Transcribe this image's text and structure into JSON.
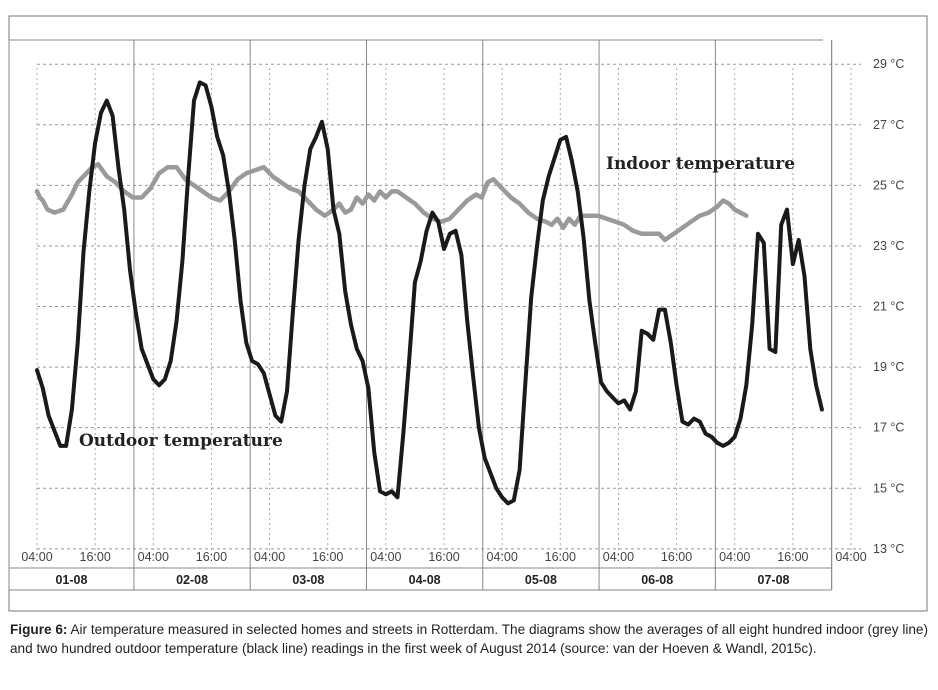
{
  "chart_data": {
    "type": "line",
    "x_unit": "day-time",
    "x_tick_labels": [
      "04:00",
      "16:00",
      "04:00",
      "16:00",
      "04:00",
      "16:00",
      "04:00",
      "16:00",
      "04:00",
      "16:00",
      "04:00",
      "16:00",
      "04:00",
      "16:00",
      "04:00"
    ],
    "day_labels": [
      "01-08",
      "02-08",
      "03-08",
      "04-08",
      "05-08",
      "06-08",
      "07-08"
    ],
    "y_tick_labels": [
      "29 °C",
      "27 °C",
      "25 °C",
      "23 °C",
      "21 °C",
      "19 °C",
      "17 °C",
      "15 °C",
      "13 °C"
    ],
    "y_ticks": [
      29,
      27,
      25,
      23,
      21,
      19,
      17,
      15,
      13
    ],
    "ylim": [
      12.4,
      29.8
    ],
    "grid": true,
    "series": [
      {
        "name": "Indoor temperature",
        "color": "#9a9a9a",
        "points": [
          [
            0,
            24.8
          ],
          [
            0.5,
            24.6
          ],
          [
            1,
            24.5
          ],
          [
            1.8,
            24.2
          ],
          [
            3,
            24.1
          ],
          [
            4.5,
            24.2
          ],
          [
            6,
            24.7
          ],
          [
            7,
            25.1
          ],
          [
            8.5,
            25.4
          ],
          [
            9.5,
            25.6
          ],
          [
            10.5,
            25.7
          ],
          [
            12,
            25.3
          ],
          [
            13.5,
            25.1
          ],
          [
            15,
            24.8
          ],
          [
            16.5,
            24.6
          ],
          [
            18,
            24.6
          ],
          [
            19.5,
            24.9
          ],
          [
            21,
            25.4
          ],
          [
            22.5,
            25.6
          ],
          [
            24,
            25.6
          ],
          [
            25.5,
            25.2
          ],
          [
            27,
            25
          ],
          [
            28.5,
            24.8
          ],
          [
            30,
            24.6
          ],
          [
            31.5,
            24.5
          ],
          [
            33,
            24.8
          ],
          [
            34.5,
            25.2
          ],
          [
            36,
            25.4
          ],
          [
            37.5,
            25.5
          ],
          [
            39,
            25.6
          ],
          [
            40.5,
            25.3
          ],
          [
            42,
            25.1
          ],
          [
            43.5,
            24.9
          ],
          [
            45,
            24.8
          ],
          [
            46.5,
            24.5
          ],
          [
            48,
            24.2
          ],
          [
            49.5,
            24
          ],
          [
            51,
            24.2
          ],
          [
            52,
            24.4
          ],
          [
            53,
            24.1
          ],
          [
            54,
            24.2
          ],
          [
            55,
            24.6
          ],
          [
            56,
            24.4
          ],
          [
            57,
            24.7
          ],
          [
            58,
            24.5
          ],
          [
            59,
            24.8
          ],
          [
            60,
            24.6
          ],
          [
            61,
            24.8
          ],
          [
            62,
            24.8
          ],
          [
            63.5,
            24.6
          ],
          [
            65,
            24.4
          ],
          [
            66.5,
            24.1
          ],
          [
            68,
            23.9
          ],
          [
            69.5,
            23.8
          ],
          [
            71,
            23.9
          ],
          [
            72.5,
            24.2
          ],
          [
            74,
            24.5
          ],
          [
            75.5,
            24.7
          ],
          [
            76.5,
            24.6
          ],
          [
            77.5,
            25.1
          ],
          [
            78.5,
            25.2
          ],
          [
            80,
            24.9
          ],
          [
            81.5,
            24.6
          ],
          [
            83,
            24.4
          ],
          [
            84.5,
            24.1
          ],
          [
            86,
            23.9
          ],
          [
            87.5,
            23.8
          ],
          [
            88.5,
            23.7
          ],
          [
            89.5,
            23.9
          ],
          [
            90.5,
            23.6
          ],
          [
            91.5,
            23.9
          ],
          [
            92.5,
            23.7
          ],
          [
            93.5,
            24
          ],
          [
            95,
            24
          ],
          [
            96.5,
            24
          ],
          [
            98,
            23.9
          ],
          [
            99.5,
            23.8
          ],
          [
            101,
            23.7
          ],
          [
            102.5,
            23.5
          ],
          [
            104,
            23.4
          ],
          [
            105.5,
            23.4
          ],
          [
            107,
            23.4
          ],
          [
            108,
            23.2
          ],
          [
            109.5,
            23.4
          ],
          [
            111,
            23.6
          ],
          [
            112.5,
            23.8
          ],
          [
            114,
            24
          ],
          [
            115.5,
            24.1
          ],
          [
            117,
            24.3
          ],
          [
            118,
            24.5
          ],
          [
            119,
            24.4
          ],
          [
            120,
            24.2
          ],
          [
            121,
            24.1
          ],
          [
            122,
            24
          ]
        ]
      },
      {
        "name": "Outdoor temperature",
        "color": "#1a1a1a",
        "points": [
          [
            0,
            18.9
          ],
          [
            1,
            18.3
          ],
          [
            2,
            17.4
          ],
          [
            3,
            16.9
          ],
          [
            4,
            16.4
          ],
          [
            5,
            16.4
          ],
          [
            6,
            17.6
          ],
          [
            7,
            19.8
          ],
          [
            8,
            22.8
          ],
          [
            9,
            24.8
          ],
          [
            10,
            26.4
          ],
          [
            11,
            27.4
          ],
          [
            12,
            27.8
          ],
          [
            13,
            27.3
          ],
          [
            14,
            25.6
          ],
          [
            15,
            24.2
          ],
          [
            16,
            22.2
          ],
          [
            17,
            20.8
          ],
          [
            18,
            19.6
          ],
          [
            19,
            19.1
          ],
          [
            20,
            18.6
          ],
          [
            21,
            18.4
          ],
          [
            22,
            18.6
          ],
          [
            23,
            19.2
          ],
          [
            24,
            20.5
          ],
          [
            25,
            22.5
          ],
          [
            26,
            25.3
          ],
          [
            27,
            27.8
          ],
          [
            28,
            28.4
          ],
          [
            29,
            28.3
          ],
          [
            30,
            27.6
          ],
          [
            31,
            26.6
          ],
          [
            32,
            26
          ],
          [
            33,
            24.8
          ],
          [
            34,
            23.2
          ],
          [
            35,
            21.2
          ],
          [
            36,
            19.8
          ],
          [
            37,
            19.2
          ],
          [
            38,
            19.1
          ],
          [
            39,
            18.8
          ],
          [
            40,
            18.1
          ],
          [
            41,
            17.4
          ],
          [
            42,
            17.2
          ],
          [
            43,
            18.2
          ],
          [
            44,
            20.8
          ],
          [
            45,
            23.2
          ],
          [
            46,
            25
          ],
          [
            47,
            26.2
          ],
          [
            48,
            26.6
          ],
          [
            49,
            27.1
          ],
          [
            50,
            26.2
          ],
          [
            51,
            24.2
          ],
          [
            52,
            23.4
          ],
          [
            53,
            21.5
          ],
          [
            54,
            20.4
          ],
          [
            55,
            19.6
          ],
          [
            56,
            19.2
          ],
          [
            57,
            18.3
          ],
          [
            58,
            16.2
          ],
          [
            59,
            14.9
          ],
          [
            60,
            14.8
          ],
          [
            61,
            14.9
          ],
          [
            62,
            14.7
          ],
          [
            63,
            16.8
          ],
          [
            64,
            19.2
          ],
          [
            65,
            21.8
          ],
          [
            66,
            22.5
          ],
          [
            67,
            23.5
          ],
          [
            68,
            24.1
          ],
          [
            69,
            23.8
          ],
          [
            70,
            22.9
          ],
          [
            71,
            23.4
          ],
          [
            72,
            23.5
          ],
          [
            73,
            22.7
          ],
          [
            74,
            20.5
          ],
          [
            75,
            18.7
          ],
          [
            76,
            17
          ],
          [
            77,
            16
          ],
          [
            78,
            15.5
          ],
          [
            79,
            15
          ],
          [
            80,
            14.7
          ],
          [
            81,
            14.5
          ],
          [
            82,
            14.6
          ],
          [
            83,
            15.6
          ],
          [
            84,
            18.5
          ],
          [
            85,
            21.3
          ],
          [
            86,
            23
          ],
          [
            87,
            24.5
          ],
          [
            88,
            25.3
          ],
          [
            89,
            25.9
          ],
          [
            90,
            26.5
          ],
          [
            91,
            26.6
          ],
          [
            92,
            25.8
          ],
          [
            93,
            24.8
          ],
          [
            94,
            23.3
          ],
          [
            95,
            21.2
          ],
          [
            96,
            19.8
          ],
          [
            97,
            18.5
          ],
          [
            98,
            18.2
          ],
          [
            99,
            18
          ],
          [
            100,
            17.8
          ],
          [
            101,
            17.9
          ],
          [
            102,
            17.6
          ],
          [
            103,
            18.2
          ],
          [
            104,
            20.2
          ],
          [
            105,
            20.1
          ],
          [
            106,
            19.9
          ],
          [
            107,
            20.9
          ],
          [
            108,
            20.9
          ],
          [
            109,
            19.8
          ],
          [
            110,
            18.4
          ],
          [
            111,
            17.2
          ],
          [
            112,
            17.1
          ],
          [
            113,
            17.3
          ],
          [
            114,
            17.2
          ],
          [
            115,
            16.8
          ],
          [
            116,
            16.7
          ],
          [
            117,
            16.5
          ],
          [
            118,
            16.4
          ],
          [
            119,
            16.5
          ],
          [
            120,
            16.7
          ],
          [
            121,
            17.3
          ],
          [
            122,
            18.4
          ],
          [
            123,
            20.4
          ],
          [
            124,
            23.4
          ],
          [
            125,
            23.1
          ],
          [
            126,
            19.6
          ],
          [
            127,
            19.5
          ],
          [
            128,
            23.7
          ],
          [
            129,
            24.2
          ],
          [
            130,
            22.4
          ],
          [
            131,
            23.2
          ],
          [
            132,
            22
          ],
          [
            133,
            19.6
          ],
          [
            134,
            18.4
          ],
          [
            135,
            17.6
          ]
        ]
      }
    ],
    "annotations": [
      "Indoor temperature",
      "Outdoor temperature"
    ]
  },
  "caption": {
    "label": "Figure 6:",
    "text": " Air temperature measured in selected homes and streets in Rotterdam. The diagrams show the averages of all eight hundred indoor (grey line) and two hundred outdoor temperature (black line) readings in the first week of August 2014 (source: van der Hoeven & Wandl, 2015c)."
  }
}
